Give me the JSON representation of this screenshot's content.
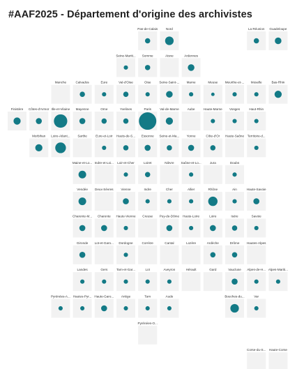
{
  "title": "#AAF2025 - Département d'origine des archivistes",
  "chart_data": {
    "type": "tile-grid bubble map",
    "cell_color": "#f2f2f2",
    "bubble_color": "#137a86",
    "cells": [
      {
        "name": "Pas-de-Calais",
        "row": 0,
        "col": 6,
        "value": 1
      },
      {
        "name": "Nord",
        "row": 0,
        "col": 7,
        "value": 4
      },
      {
        "name": "La Réunion",
        "row": 0,
        "col": 11,
        "value": 1
      },
      {
        "name": "Guadeloupe",
        "row": 0,
        "col": 12,
        "value": 2
      },
      {
        "name": "Seine-Mariti...",
        "row": 1,
        "col": 5,
        "value": 0.5
      },
      {
        "name": "Somme",
        "row": 1,
        "col": 6,
        "value": 1
      },
      {
        "name": "Aisne",
        "row": 1,
        "col": 7,
        "value": 0
      },
      {
        "name": "Ardennes",
        "row": 1,
        "col": 8,
        "value": 2
      },
      {
        "name": "Manche",
        "row": 2,
        "col": 2,
        "value": 0
      },
      {
        "name": "Calvados",
        "row": 2,
        "col": 3,
        "value": 1
      },
      {
        "name": "Eure",
        "row": 2,
        "col": 4,
        "value": 0.5
      },
      {
        "name": "Val-d'Oise",
        "row": 2,
        "col": 5,
        "value": 1
      },
      {
        "name": "Oise",
        "row": 2,
        "col": 6,
        "value": 0.5
      },
      {
        "name": "Seine-Saint-...",
        "row": 2,
        "col": 7,
        "value": 2
      },
      {
        "name": "Marne",
        "row": 2,
        "col": 8,
        "value": 0.5
      },
      {
        "name": "Meuse",
        "row": 2,
        "col": 9,
        "value": 0.2
      },
      {
        "name": "Meurthe-et-...",
        "row": 2,
        "col": 10,
        "value": 0.5
      },
      {
        "name": "Moselle",
        "row": 2,
        "col": 11,
        "value": 0.5
      },
      {
        "name": "Bas-Rhin",
        "row": 2,
        "col": 12,
        "value": 2.5
      },
      {
        "name": "Finistère",
        "row": 3,
        "col": 0,
        "value": 2.5
      },
      {
        "name": "Côtes-d'Armor",
        "row": 3,
        "col": 1,
        "value": 1.5
      },
      {
        "name": "Ille-et-Vilaine",
        "row": 3,
        "col": 2,
        "value": 12
      },
      {
        "name": "Mayenne",
        "row": 3,
        "col": 3,
        "value": 1.5
      },
      {
        "name": "Orne",
        "row": 3,
        "col": 4,
        "value": 1
      },
      {
        "name": "Yvelines",
        "row": 3,
        "col": 5,
        "value": 1
      },
      {
        "name": "Paris",
        "row": 3,
        "col": 6,
        "value": 22
      },
      {
        "name": "Val-de-Marne",
        "row": 3,
        "col": 7,
        "value": 2.5
      },
      {
        "name": "Aube",
        "row": 3,
        "col": 8,
        "value": 0
      },
      {
        "name": "Haute-Marne",
        "row": 3,
        "col": 9,
        "value": 0.5
      },
      {
        "name": "Vosges",
        "row": 3,
        "col": 10,
        "value": 0.5
      },
      {
        "name": "Haut-Rhin",
        "row": 3,
        "col": 11,
        "value": 0.5
      },
      {
        "name": "Morbihan",
        "row": 4,
        "col": 1,
        "value": 2.5
      },
      {
        "name": "Loire-Atlant...",
        "row": 4,
        "col": 2,
        "value": 7
      },
      {
        "name": "Sarthe",
        "row": 4,
        "col": 3,
        "value": 0
      },
      {
        "name": "Eure-et-Loir",
        "row": 4,
        "col": 4,
        "value": 0.5
      },
      {
        "name": "Hauts-de-S...",
        "row": 4,
        "col": 5,
        "value": 1
      },
      {
        "name": "Essonne",
        "row": 4,
        "col": 6,
        "value": 1.5
      },
      {
        "name": "Seine-et-Ma...",
        "row": 4,
        "col": 7,
        "value": 1
      },
      {
        "name": "Yonne",
        "row": 4,
        "col": 8,
        "value": 1.5
      },
      {
        "name": "Côte-d'Or",
        "row": 4,
        "col": 9,
        "value": 1
      },
      {
        "name": "Haute-Saône",
        "row": 4,
        "col": 10,
        "value": 0
      },
      {
        "name": "Territoire-d...",
        "row": 4,
        "col": 11,
        "value": 0.5
      },
      {
        "name": "Maine-et-Lo...",
        "row": 5,
        "col": 3,
        "value": 3
      },
      {
        "name": "Indre-et-Loi...",
        "row": 5,
        "col": 4,
        "value": 0
      },
      {
        "name": "Loir-et-Cher",
        "row": 5,
        "col": 5,
        "value": 0.5
      },
      {
        "name": "Loiret",
        "row": 5,
        "col": 6,
        "value": 1
      },
      {
        "name": "Nièvre",
        "row": 5,
        "col": 7,
        "value": 0
      },
      {
        "name": "Saône-et-Lo...",
        "row": 5,
        "col": 8,
        "value": 0.5
      },
      {
        "name": "Jura",
        "row": 5,
        "col": 9,
        "value": 0
      },
      {
        "name": "Doubs",
        "row": 5,
        "col": 10,
        "value": 0.5
      },
      {
        "name": "Vendée",
        "row": 6,
        "col": 3,
        "value": 3
      },
      {
        "name": "Deux-Sèvres",
        "row": 6,
        "col": 4,
        "value": 0
      },
      {
        "name": "Vienne",
        "row": 6,
        "col": 5,
        "value": 1.5
      },
      {
        "name": "Indre",
        "row": 6,
        "col": 6,
        "value": 0.5
      },
      {
        "name": "Cher",
        "row": 6,
        "col": 7,
        "value": 0.5
      },
      {
        "name": "Allier",
        "row": 6,
        "col": 8,
        "value": 0.5
      },
      {
        "name": "Rhône",
        "row": 6,
        "col": 9,
        "value": 5
      },
      {
        "name": "Ain",
        "row": 6,
        "col": 10,
        "value": 0.5
      },
      {
        "name": "Haute-Savoie",
        "row": 6,
        "col": 11,
        "value": 1.5
      },
      {
        "name": "Charente-M...",
        "row": 7,
        "col": 3,
        "value": 1.5
      },
      {
        "name": "Charente",
        "row": 7,
        "col": 4,
        "value": 1.5
      },
      {
        "name": "Haute-Vienne",
        "row": 7,
        "col": 5,
        "value": 0.5
      },
      {
        "name": "Creuse",
        "row": 7,
        "col": 6,
        "value": 0
      },
      {
        "name": "Puy-de-Dôme",
        "row": 7,
        "col": 7,
        "value": 1.5
      },
      {
        "name": "Haute-Loire",
        "row": 7,
        "col": 8,
        "value": 0.5
      },
      {
        "name": "Loire",
        "row": 7,
        "col": 9,
        "value": 1.5
      },
      {
        "name": "Isère",
        "row": 7,
        "col": 10,
        "value": 1
      },
      {
        "name": "Savoie",
        "row": 7,
        "col": 11,
        "value": 0.5
      },
      {
        "name": "Gironde",
        "row": 8,
        "col": 3,
        "value": 1.5
      },
      {
        "name": "Lot-et-Garo...",
        "row": 8,
        "col": 4,
        "value": 0
      },
      {
        "name": "Dordogne",
        "row": 8,
        "col": 5,
        "value": 0.5
      },
      {
        "name": "Corrèze",
        "row": 8,
        "col": 6,
        "value": 0
      },
      {
        "name": "Cantal",
        "row": 8,
        "col": 7,
        "value": 0
      },
      {
        "name": "Lozère",
        "row": 8,
        "col": 8,
        "value": 0
      },
      {
        "name": "Ardèche",
        "row": 8,
        "col": 9,
        "value": 1
      },
      {
        "name": "Drôme",
        "row": 8,
        "col": 10,
        "value": 1
      },
      {
        "name": "Hautes-Alpes",
        "row": 8,
        "col": 11,
        "value": 0
      },
      {
        "name": "Landes",
        "row": 9,
        "col": 3,
        "value": 0.5
      },
      {
        "name": "Gers",
        "row": 9,
        "col": 4,
        "value": 0.5
      },
      {
        "name": "Tarn-et-Gar...",
        "row": 9,
        "col": 5,
        "value": 0.5
      },
      {
        "name": "Lot",
        "row": 9,
        "col": 6,
        "value": 0.5
      },
      {
        "name": "Aveyron",
        "row": 9,
        "col": 7,
        "value": 0.5
      },
      {
        "name": "Hérault",
        "row": 9,
        "col": 8,
        "value": 0
      },
      {
        "name": "Gard",
        "row": 9,
        "col": 9,
        "value": 0
      },
      {
        "name": "Vaucluse",
        "row": 9,
        "col": 10,
        "value": 1.5
      },
      {
        "name": "Alpes-de-H...",
        "row": 9,
        "col": 11,
        "value": 0.5
      },
      {
        "name": "Alpes-Mariti...",
        "row": 9,
        "col": 12,
        "value": 0.5
      },
      {
        "name": "Pyrénées-A...",
        "row": 10,
        "col": 2,
        "value": 0.5
      },
      {
        "name": "Hautes-Pyr...",
        "row": 10,
        "col": 3,
        "value": 0.5
      },
      {
        "name": "Haute-Garo...",
        "row": 10,
        "col": 4,
        "value": 1.5
      },
      {
        "name": "Ariège",
        "row": 10,
        "col": 5,
        "value": 0.5
      },
      {
        "name": "Tarn",
        "row": 10,
        "col": 6,
        "value": 0.5
      },
      {
        "name": "Aude",
        "row": 10,
        "col": 7,
        "value": 0.5
      },
      {
        "name": "Bouches-du...",
        "row": 10,
        "col": 10,
        "value": 4
      },
      {
        "name": "Var",
        "row": 10,
        "col": 11,
        "value": 0.5
      },
      {
        "name": "Pyrénées-O...",
        "row": 11,
        "col": 6,
        "value": 0
      },
      {
        "name": "Corse-du-S...",
        "row": 12,
        "col": 11,
        "value": 0
      },
      {
        "name": "Haute-Corse",
        "row": 12,
        "col": 12,
        "value": 0
      }
    ]
  }
}
